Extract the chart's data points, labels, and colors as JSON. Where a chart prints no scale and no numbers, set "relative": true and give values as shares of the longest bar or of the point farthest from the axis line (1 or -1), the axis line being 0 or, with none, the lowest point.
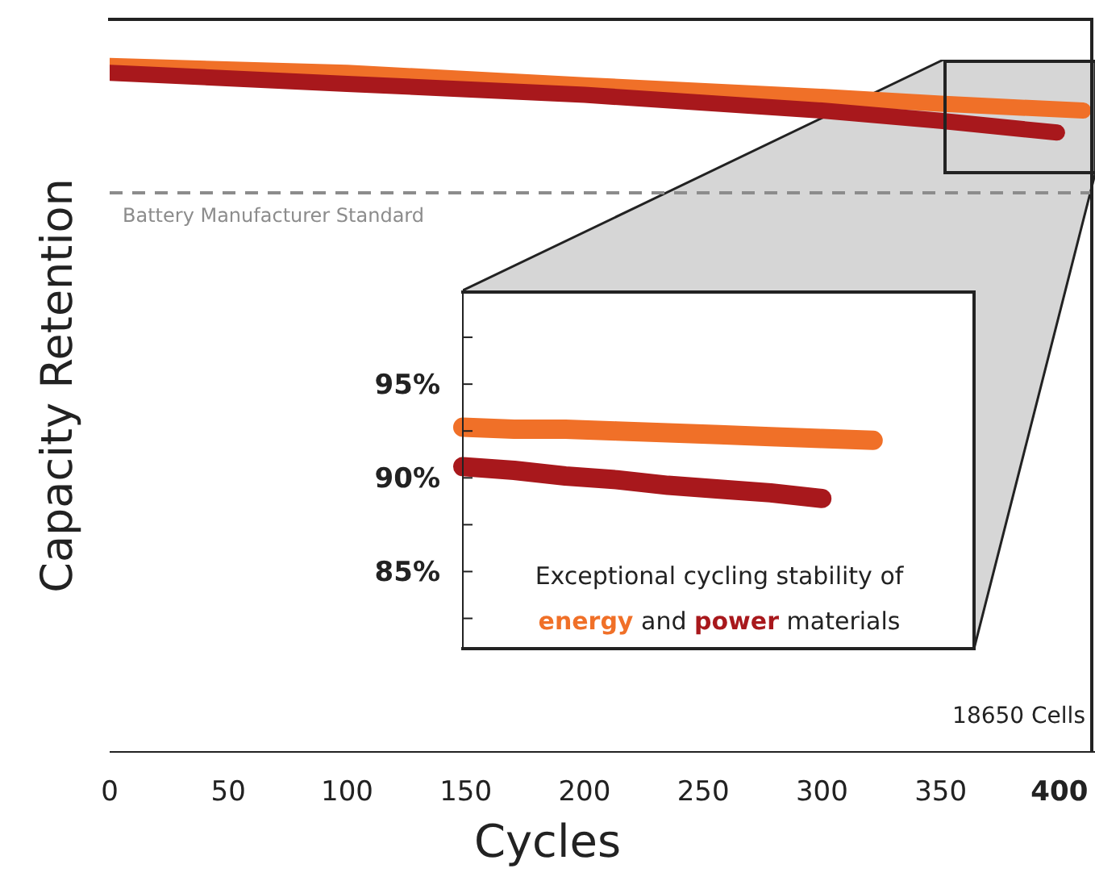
{
  "chart_data": [
    {
      "type": "line",
      "xlabel": "Cycles",
      "ylabel": "Capacity Retention",
      "relative": true,
      "xlim": [
        0,
        415
      ],
      "xticks": [
        0,
        50,
        100,
        150,
        200,
        250,
        300,
        350,
        400
      ],
      "series": [
        {
          "color": "#f07028",
          "x": [
            0,
            100,
            200,
            300,
            350,
            410
          ],
          "values": [
            1,
            0.99,
            0.972,
            0.955,
            0.945,
            0.935
          ]
        },
        {
          "color": "#a8181c",
          "x": [
            0,
            100,
            200,
            300,
            350,
            399
          ],
          "values": [
            0.99,
            0.974,
            0.958,
            0.935,
            0.92,
            0.903
          ]
        }
      ],
      "ref_lines": [
        {
          "axis": "y",
          "value": 0.815,
          "label": "Battery Manufacturer Standard",
          "color": "#8c8c8c",
          "line_style": "dashed"
        }
      ],
      "annotations": [
        "18650 Cells"
      ],
      "grid": false,
      "legend": false
    },
    {
      "type": "line",
      "categories": [
        null,
        null,
        null,
        null,
        null,
        null,
        null,
        null,
        null,
        null,
        null
      ],
      "ylim": [
        80.8,
        100
      ],
      "yticks": [
        {
          "value": 82.5,
          "label": null
        },
        {
          "value": 85,
          "label": "85%"
        },
        {
          "value": 87.5,
          "label": null
        },
        {
          "value": 90,
          "label": "90%"
        },
        {
          "value": 92.5,
          "label": null
        },
        {
          "value": 95,
          "label": "95%"
        },
        {
          "value": 97.5,
          "label": null
        }
      ],
      "tick_labels": "y",
      "series": [
        {
          "name": "energy",
          "color": "#f07028",
          "values": [
            92.7,
            92.6,
            92.6,
            92.5,
            92.4,
            92.3,
            92.2,
            92.1,
            92.0,
            null,
            null
          ]
        },
        {
          "name": "power",
          "color": "#a8181c",
          "values": [
            90.6,
            90.4,
            90.1,
            89.9,
            89.6,
            89.4,
            89.2,
            88.9,
            null,
            null,
            null
          ]
        }
      ],
      "annotations": [
        "Exceptional cycling stability of",
        "and",
        "materials"
      ],
      "grid": false,
      "legend": false
    }
  ]
}
